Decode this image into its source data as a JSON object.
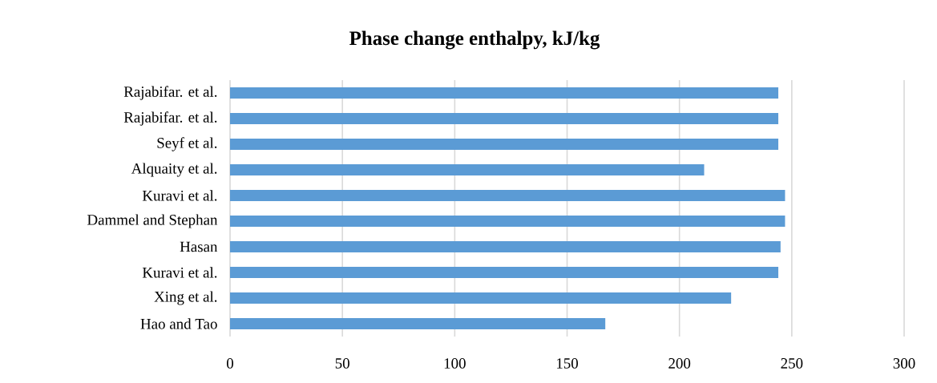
{
  "chart_data": {
    "type": "bar",
    "orientation": "horizontal",
    "title": "Phase change enthalpy, kJ/kg",
    "categories": [
      "Rajabifar. et al.",
      "Rajabifar. et al.",
      "Seyf et al.",
      "Alquaity et al.",
      "Kuravi et al.",
      "Dammel and Stephan",
      "Hasan",
      "Kuravi et al.",
      "Xing et al.",
      "Hao and Tao"
    ],
    "values": [
      244,
      244,
      244,
      211,
      247,
      247,
      245,
      244,
      223,
      167
    ],
    "color": "#5b9bd5",
    "xlim": [
      0,
      300
    ],
    "xticks": [
      0,
      50,
      100,
      150,
      200,
      250,
      300
    ],
    "grid": "x"
  }
}
